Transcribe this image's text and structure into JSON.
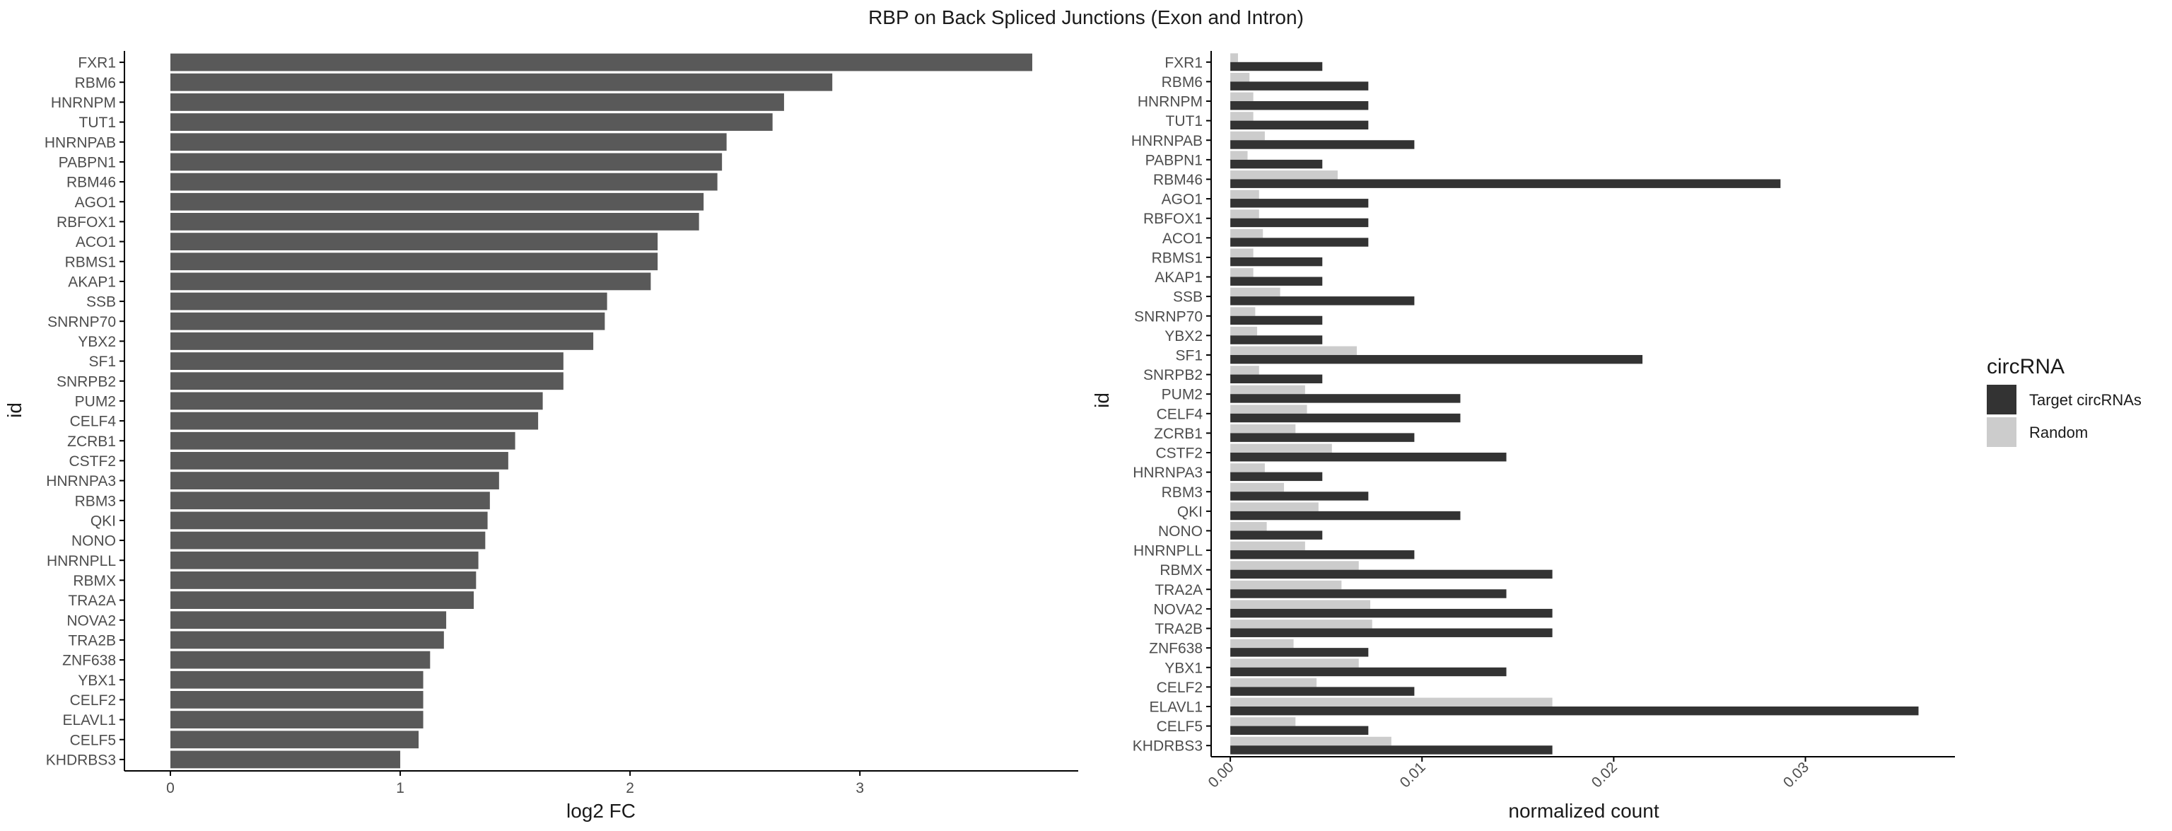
{
  "figure_title": "RBP on Back Spliced Junctions (Exon and Intron)",
  "chart_data": [
    {
      "type": "bar",
      "orientation": "horizontal",
      "xlabel": "log2 FC",
      "ylabel": "id",
      "xlim": [
        -0.2,
        3.95
      ],
      "xticks": [
        0,
        1,
        2,
        3
      ],
      "grid": false,
      "bar_color": "#595959",
      "categories": [
        "FXR1",
        "RBM6",
        "HNRNPM",
        "TUT1",
        "HNRNPAB",
        "PABPN1",
        "RBM46",
        "AGO1",
        "RBFOX1",
        "ACO1",
        "RBMS1",
        "AKAP1",
        "SSB",
        "SNRNP70",
        "YBX2",
        "SF1",
        "SNRPB2",
        "PUM2",
        "CELF4",
        "ZCRB1",
        "CSTF2",
        "HNRNPA3",
        "RBM3",
        "QKI",
        "NONO",
        "HNRNPLL",
        "RBMX",
        "TRA2A",
        "NOVA2",
        "TRA2B",
        "ZNF638",
        "YBX1",
        "CELF2",
        "ELAVL1",
        "CELF5",
        "KHDRBS3"
      ],
      "values": [
        3.75,
        2.88,
        2.67,
        2.62,
        2.42,
        2.4,
        2.38,
        2.32,
        2.3,
        2.12,
        2.12,
        2.09,
        1.9,
        1.89,
        1.84,
        1.71,
        1.71,
        1.62,
        1.6,
        1.5,
        1.47,
        1.43,
        1.39,
        1.38,
        1.37,
        1.34,
        1.33,
        1.32,
        1.2,
        1.19,
        1.13,
        1.1,
        1.1,
        1.1,
        1.08,
        1.0
      ]
    },
    {
      "type": "bar",
      "orientation": "horizontal",
      "grouped": true,
      "xlabel": "normalized count",
      "ylabel": "id",
      "xlim": [
        -0.001,
        0.0378
      ],
      "xticks": [
        "0.00",
        "0.01",
        "0.02",
        "0.03"
      ],
      "xtick_values": [
        0,
        0.01,
        0.02,
        0.03
      ],
      "grid": false,
      "legend_title": "circRNA",
      "legend_position": "right",
      "categories": [
        "FXR1",
        "RBM6",
        "HNRNPM",
        "TUT1",
        "HNRNPAB",
        "PABPN1",
        "RBM46",
        "AGO1",
        "RBFOX1",
        "ACO1",
        "RBMS1",
        "AKAP1",
        "SSB",
        "SNRNP70",
        "YBX2",
        "SF1",
        "SNRPB2",
        "PUM2",
        "CELF4",
        "ZCRB1",
        "CSTF2",
        "HNRNPA3",
        "RBM3",
        "QKI",
        "NONO",
        "HNRNPLL",
        "RBMX",
        "TRA2A",
        "NOVA2",
        "TRA2B",
        "ZNF638",
        "YBX1",
        "CELF2",
        "ELAVL1",
        "CELF5",
        "KHDRBS3"
      ],
      "series": [
        {
          "name": "Target circRNAs",
          "color": "#333333",
          "values": [
            0.0048,
            0.0072,
            0.0072,
            0.0072,
            0.0096,
            0.0048,
            0.0287,
            0.0072,
            0.0072,
            0.0072,
            0.0048,
            0.0048,
            0.0096,
            0.0048,
            0.0048,
            0.0215,
            0.0048,
            0.012,
            0.012,
            0.0096,
            0.0144,
            0.0048,
            0.0072,
            0.012,
            0.0048,
            0.0096,
            0.0168,
            0.0144,
            0.0168,
            0.0168,
            0.0072,
            0.0144,
            0.0096,
            0.0359,
            0.0072,
            0.0168
          ]
        },
        {
          "name": "Random",
          "color": "#cccccc",
          "values": [
            0.0004,
            0.001,
            0.0012,
            0.0012,
            0.0018,
            0.0009,
            0.0056,
            0.0015,
            0.0015,
            0.0017,
            0.0012,
            0.0012,
            0.0026,
            0.0013,
            0.0014,
            0.0066,
            0.0015,
            0.0039,
            0.004,
            0.0034,
            0.0053,
            0.0018,
            0.0028,
            0.0046,
            0.0019,
            0.0039,
            0.0067,
            0.0058,
            0.0073,
            0.0074,
            0.0033,
            0.0067,
            0.0045,
            0.0168,
            0.0034,
            0.0084
          ]
        }
      ]
    }
  ]
}
